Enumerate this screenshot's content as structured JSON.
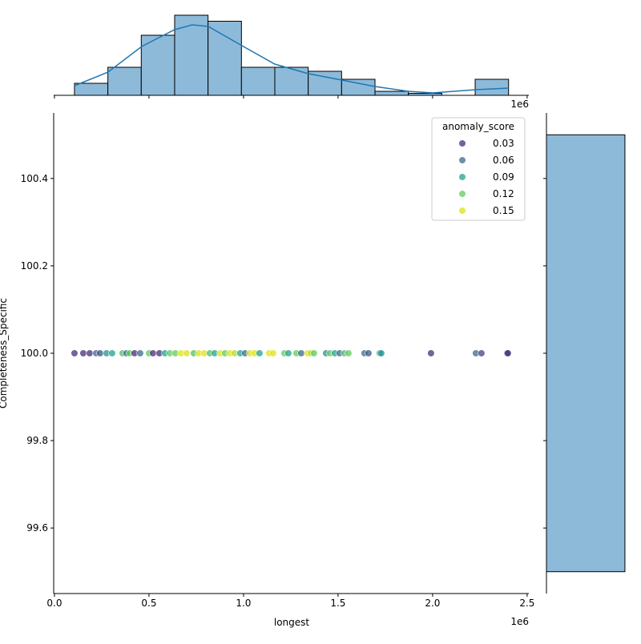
{
  "chart_data": [
    {
      "type": "scatter",
      "x_label": "longest",
      "y_label": "Completeness_Specific",
      "offset_label": "1e6",
      "x": [
        106000,
        152500,
        186400,
        220300,
        241500,
        275400,
        305100,
        360200,
        381400,
        398300,
        423700,
        453400,
        500000,
        521200,
        555100,
        584700,
        610200,
        639800,
        669500,
        699200,
        737300,
        762700,
        792400,
        822000,
        847500,
        877100,
        902500,
        928000,
        953400,
        983100,
        1008500,
        1033900,
        1059300,
        1084700,
        1135600,
        1156800,
        1216100,
        1237300,
        1279700,
        1305100,
        1339000,
        1355900,
        1372900,
        1436400,
        1457600,
        1483100,
        1508500,
        1533900,
        1555100,
        1639800,
        1661000,
        1720300,
        1728800,
        1991500,
        2228800,
        2258500,
        2394100,
        2398300
      ],
      "values": [
        100,
        100,
        100,
        100,
        100,
        100,
        100,
        100,
        100,
        100,
        100,
        100,
        100,
        100,
        100,
        100,
        100,
        100,
        100,
        100,
        100,
        100,
        100,
        100,
        100,
        100,
        100,
        100,
        100,
        100,
        100,
        100,
        100,
        100,
        100,
        100,
        100,
        100,
        100,
        100,
        100,
        100,
        100,
        100,
        100,
        100,
        100,
        100,
        100,
        100,
        100,
        100,
        100,
        100,
        100,
        100,
        100,
        100
      ],
      "hue": [
        0.02,
        0.03,
        0.01,
        0.06,
        0.05,
        0.08,
        0.09,
        0.11,
        0.06,
        0.12,
        0.03,
        0.06,
        0.12,
        0.02,
        0.03,
        0.09,
        0.12,
        0.12,
        0.15,
        0.15,
        0.11,
        0.15,
        0.15,
        0.11,
        0.09,
        0.15,
        0.12,
        0.15,
        0.14,
        0.09,
        0.06,
        0.15,
        0.15,
        0.09,
        0.15,
        0.15,
        0.12,
        0.09,
        0.12,
        0.06,
        0.15,
        0.14,
        0.12,
        0.08,
        0.12,
        0.09,
        0.06,
        0.11,
        0.12,
        0.06,
        0.05,
        0.09,
        0.08,
        0.03,
        0.06,
        0.04,
        0.04,
        0.03
      ],
      "xlim": [
        -4000,
        2509000
      ],
      "ylim": [
        99.45,
        100.55
      ],
      "xticks": [
        {
          "value": 0,
          "label": "0.0"
        },
        {
          "value": 500000,
          "label": "0.5"
        },
        {
          "value": 1000000,
          "label": "1.0"
        },
        {
          "value": 1500000,
          "label": "1.5"
        },
        {
          "value": 2000000,
          "label": "2.0"
        },
        {
          "value": 2500000,
          "label": "2.5"
        }
      ],
      "yticks": [
        99.6,
        99.8,
        {
          "value": 100,
          "label": "100.0"
        },
        100.2,
        100.4
      ],
      "legend": {
        "title": "anomaly_score",
        "position": "upper right",
        "entries": [
          {
            "label": "0.03",
            "value": 0.03,
            "color": "#472d7b"
          },
          {
            "label": "0.06",
            "value": 0.06,
            "color": "#3b6a8e"
          },
          {
            "label": "0.09",
            "value": 0.09,
            "color": "#22a38d"
          },
          {
            "label": "0.12",
            "value": 0.12,
            "color": "#62cb5f"
          },
          {
            "label": "0.15",
            "value": 0.15,
            "color": "#dde318"
          }
        ]
      }
    },
    {
      "type": "histogram",
      "orientation": "vertical",
      "offset_label": "1e6",
      "color": "#8ebad9",
      "bins": [
        106000,
        282600,
        459200,
        635800,
        812400,
        989000,
        1165600,
        1342200,
        1518800,
        1695400,
        1872000,
        2048600,
        2225200,
        2401800
      ],
      "counts": [
        6,
        14,
        30,
        40,
        37,
        14,
        14,
        12,
        8,
        2,
        1,
        0,
        8
      ],
      "ylim": [
        0,
        42
      ],
      "kde": {
        "color": "#1f77b4",
        "x": [
          106000,
          283900,
          461900,
          635600,
          728800,
          813600,
          991500,
          1165300,
          1343200,
          1521200,
          1694900,
          1872900,
          2000000,
          2224600,
          2402500
        ],
        "y": [
          4.8,
          11.6,
          24.4,
          32.8,
          35.2,
          34.4,
          24.8,
          15.6,
          10.8,
          7.6,
          4.4,
          2,
          1.2,
          2.8,
          3.6
        ]
      }
    },
    {
      "type": "histogram",
      "orientation": "horizontal",
      "color": "#8ebad9",
      "bins": [
        99.5,
        100.5
      ],
      "counts": [
        58
      ],
      "xlim": [
        0,
        61
      ]
    }
  ]
}
